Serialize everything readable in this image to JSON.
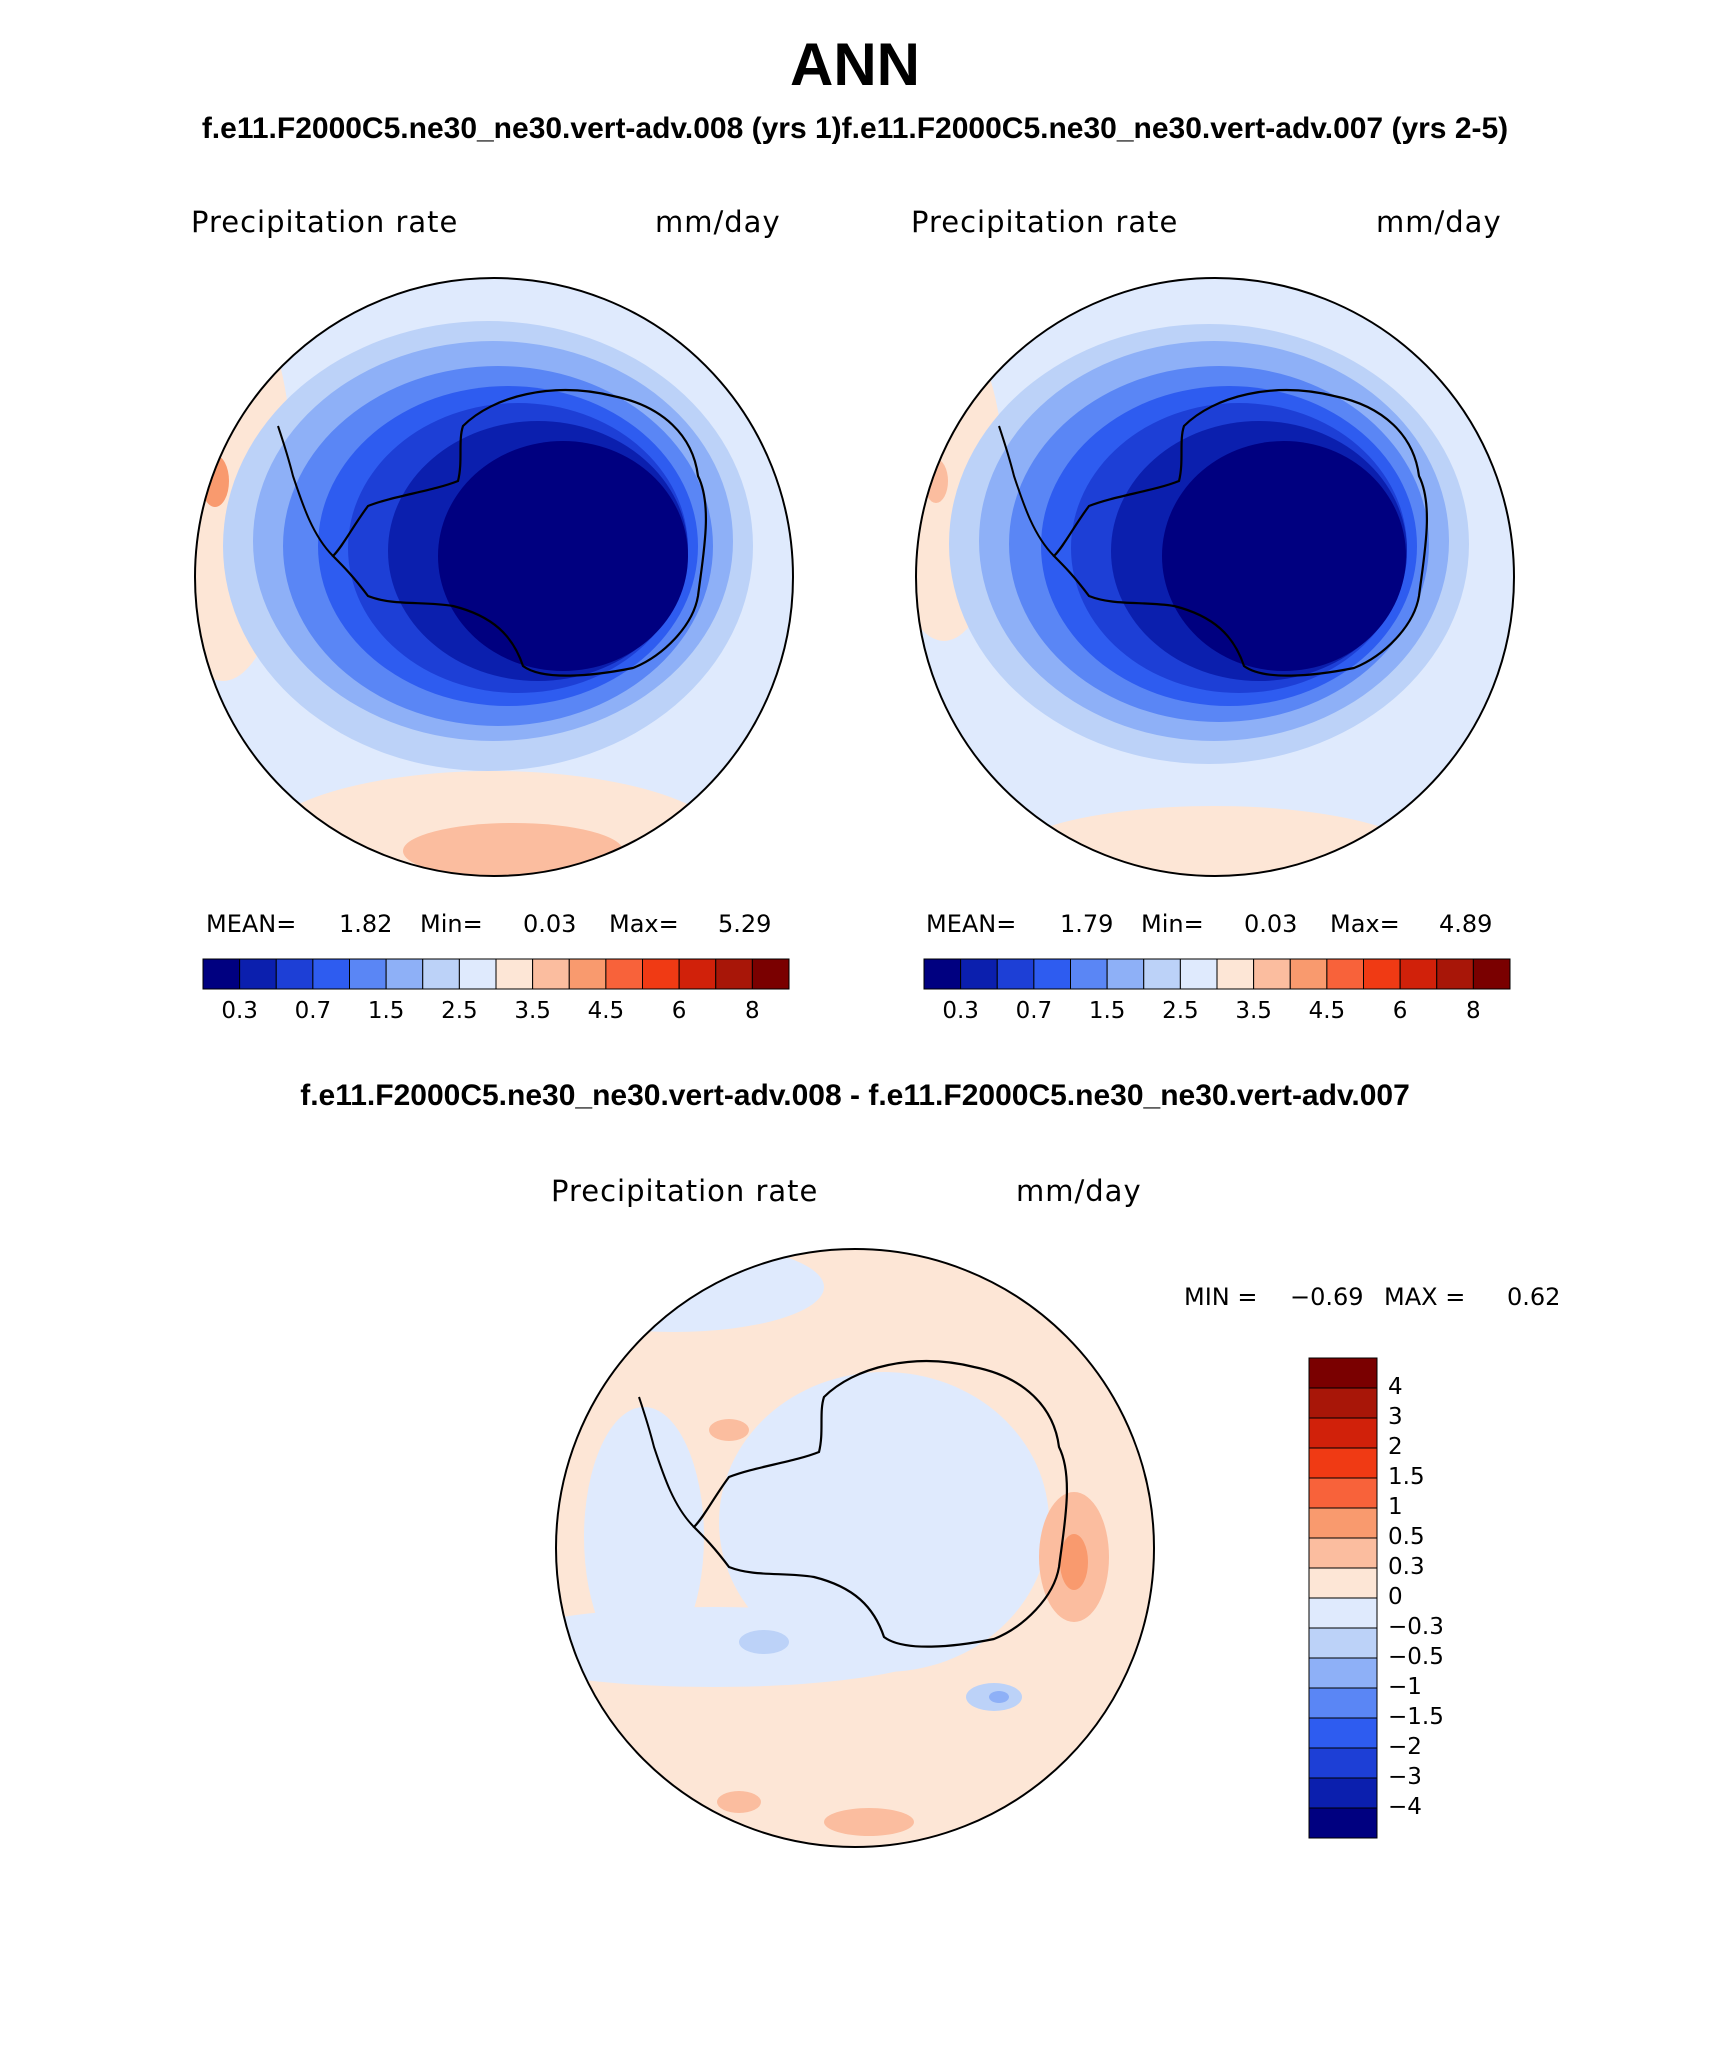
{
  "title": "ANN",
  "subtitle": "f.e11.F2000C5.ne30_ne30.vert-adv.008 (yrs 1)f.e11.F2000C5.ne30_ne30.vert-adv.007 (yrs 2-5)",
  "diff_title": "f.e11.F2000C5.ne30_ne30.vert-adv.008 - f.e11.F2000C5.ne30_ne30.vert-adv.007",
  "panels": [
    {
      "id": "case1",
      "variable": "Precipitation rate",
      "units": "mm/day",
      "mean_label": "MEAN=",
      "mean": "1.82",
      "min_label": "Min=",
      "min": "0.03",
      "max_label": "Max=",
      "max": "5.29"
    },
    {
      "id": "case2",
      "variable": "Precipitation rate",
      "units": "mm/day",
      "mean_label": "MEAN=",
      "mean": "1.79",
      "min_label": "Min=",
      "min": "0.03",
      "max_label": "Max=",
      "max": "4.89"
    }
  ],
  "diff_panel": {
    "variable": "Precipitation rate",
    "units": "mm/day",
    "min_label": "MIN =",
    "min": "−0.69",
    "max_label": "MAX =",
    "max": "0.62"
  },
  "colorbar_abs": {
    "colors": [
      "#000080",
      "#0b1fae",
      "#1d3fd6",
      "#2e5cf0",
      "#5a86f5",
      "#8eb0f7",
      "#bcd2f8",
      "#dfeafd",
      "#fde6d6",
      "#fbbd9f",
      "#f99a6e",
      "#f8623a",
      "#f03a14",
      "#d1210a",
      "#a81608",
      "#7a0000"
    ],
    "ticks": [
      "0.3",
      "0.7",
      "1.5",
      "2.5",
      "3.5",
      "4.5",
      "6",
      "8"
    ]
  },
  "colorbar_diff": {
    "colors": [
      "#000080",
      "#0b1fae",
      "#1d3fd6",
      "#2e5cf0",
      "#5a86f5",
      "#8eb0f7",
      "#bcd2f8",
      "#dfeafd",
      "#fde6d6",
      "#fbbd9f",
      "#f99a6e",
      "#f8623a",
      "#f03a14",
      "#d1210a",
      "#a81608",
      "#7a0000"
    ],
    "labels": [
      "4",
      "3",
      "2",
      "1.5",
      "1",
      "0.5",
      "0.3",
      "0",
      "−0.3",
      "−0.5",
      "−1",
      "−1.5",
      "−2",
      "−3",
      "−4"
    ]
  }
}
